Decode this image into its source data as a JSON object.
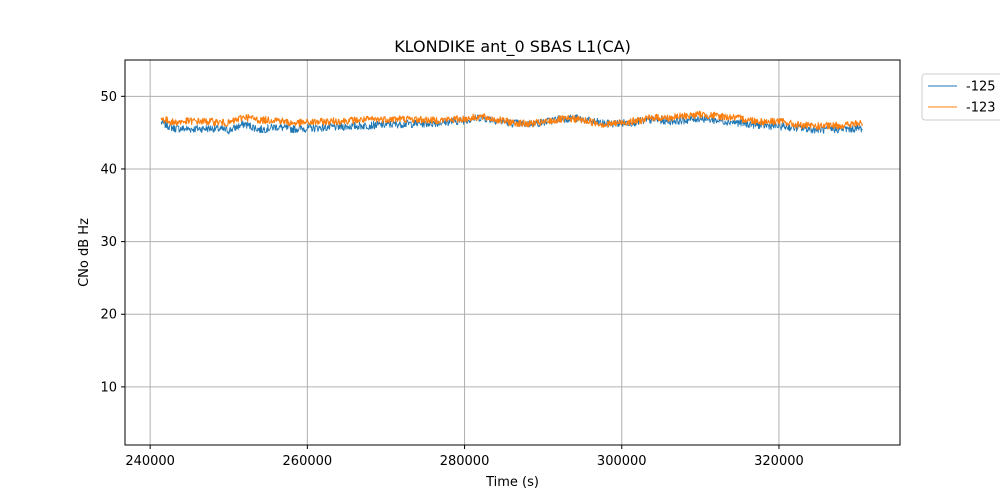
{
  "chart_data": {
    "type": "line",
    "title": "KLONDIKE ant_0 SBAS L1(CA)",
    "xlabel": "Time (s)",
    "ylabel": "CNo dB Hz",
    "xlim": [
      236800,
      335400
    ],
    "ylim": [
      2,
      55
    ],
    "xticks": [
      240000,
      260000,
      280000,
      300000,
      320000
    ],
    "yticks": [
      10,
      20,
      30,
      40,
      50
    ],
    "grid": true,
    "legend_position": "outside-top-right",
    "series": [
      {
        "name": "-125",
        "color": "#1f77b4",
        "x": [
          241400,
          243000,
          245000,
          248000,
          250000,
          252000,
          254000,
          256000,
          258000,
          260000,
          264000,
          268000,
          272000,
          276000,
          280000,
          282000,
          284000,
          286000,
          288000,
          290000,
          292000,
          294000,
          296000,
          298000,
          300000,
          302000,
          304000,
          306000,
          308000,
          310000,
          312000,
          314000,
          316000,
          318000,
          320000,
          322000,
          324000,
          326000,
          328000,
          330600
        ],
        "y": [
          46.4,
          45.6,
          45.5,
          45.6,
          45.3,
          46.2,
          45.4,
          45.8,
          45.5,
          45.6,
          45.8,
          46.0,
          46.2,
          46.3,
          46.7,
          47.1,
          46.7,
          46.3,
          46.2,
          46.4,
          46.9,
          47.0,
          46.6,
          46.2,
          46.3,
          46.5,
          46.8,
          46.6,
          46.7,
          47.0,
          46.7,
          46.5,
          46.2,
          46.0,
          45.9,
          45.7,
          45.5,
          45.4,
          45.5,
          45.6
        ]
      },
      {
        "name": "-123",
        "color": "#ff7f0e",
        "x": [
          241400,
          243000,
          245000,
          248000,
          250000,
          252000,
          254000,
          256000,
          258000,
          260000,
          264000,
          268000,
          272000,
          276000,
          280000,
          282000,
          284000,
          286000,
          288000,
          290000,
          292000,
          294000,
          296000,
          298000,
          300000,
          302000,
          304000,
          306000,
          308000,
          310000,
          312000,
          314000,
          316000,
          318000,
          320000,
          322000,
          324000,
          326000,
          328000,
          330600
        ],
        "y": [
          46.9,
          46.4,
          46.6,
          46.5,
          46.3,
          47.2,
          46.7,
          46.8,
          46.3,
          46.4,
          46.6,
          46.8,
          46.9,
          46.7,
          46.9,
          47.2,
          46.8,
          46.4,
          46.2,
          46.4,
          46.8,
          46.9,
          46.5,
          46.1,
          46.4,
          46.6,
          47.1,
          47.0,
          47.3,
          47.5,
          47.3,
          47.1,
          46.8,
          46.5,
          46.6,
          46.1,
          45.9,
          45.9,
          46.0,
          46.3
        ]
      }
    ]
  }
}
